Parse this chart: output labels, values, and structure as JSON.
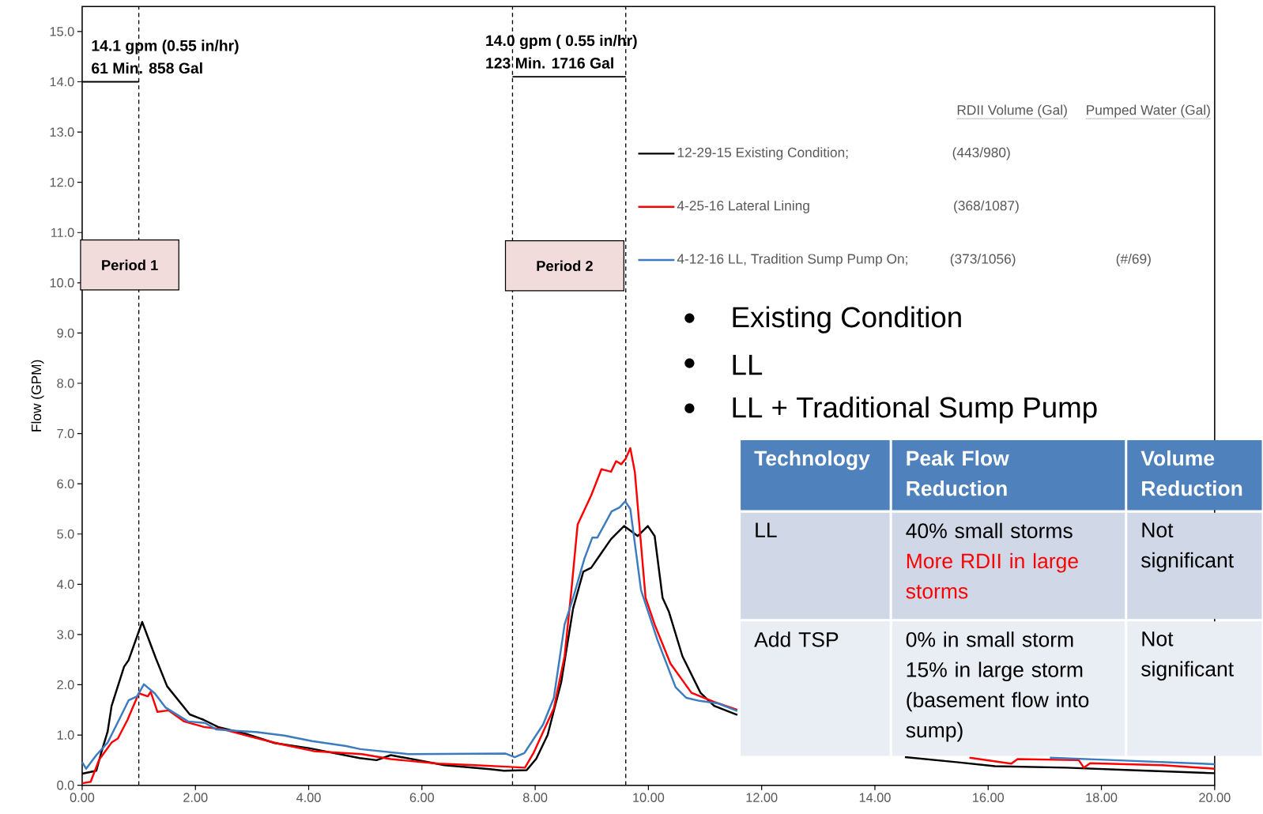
{
  "chart_data": {
    "type": "line",
    "ylabel": "Flow (GPM)",
    "xlim": [
      0,
      20
    ],
    "ylim": [
      0,
      15.5
    ],
    "xticks": [
      {
        "value": 0,
        "label": "0.00"
      },
      {
        "value": 2,
        "label": "2.00"
      },
      {
        "value": 4,
        "label": "4.00"
      },
      {
        "value": 6,
        "label": "6.00"
      },
      {
        "value": 8,
        "label": "8.00"
      },
      {
        "value": 10,
        "label": "10.00"
      },
      {
        "value": 12,
        "label": "12.00"
      },
      {
        "value": 14,
        "label": "14.00"
      },
      {
        "value": 16,
        "label": "16.00"
      },
      {
        "value": 18,
        "label": "18.00"
      },
      {
        "value": 20,
        "label": "20.00"
      }
    ],
    "yticks": [
      {
        "value": 0,
        "label": "0.0"
      },
      {
        "value": 1,
        "label": "1.0"
      },
      {
        "value": 2,
        "label": "2.0"
      },
      {
        "value": 3,
        "label": "3.0"
      },
      {
        "value": 4,
        "label": "4.0"
      },
      {
        "value": 5,
        "label": "5.0"
      },
      {
        "value": 6,
        "label": "6.0"
      },
      {
        "value": 7,
        "label": "7.0"
      },
      {
        "value": 8,
        "label": "8.0"
      },
      {
        "value": 9,
        "label": "9.0"
      },
      {
        "value": 10,
        "label": "10.0"
      },
      {
        "value": 11,
        "label": "11.0"
      },
      {
        "value": 12,
        "label": "12.0"
      },
      {
        "value": 13,
        "label": "13.0"
      },
      {
        "value": 14,
        "label": "14.0"
      },
      {
        "value": 15,
        "label": "15.0"
      }
    ],
    "legend": "top right",
    "series": [
      {
        "name": "12-29-15 Existing Condition;",
        "color": "#000000",
        "x": [
          0,
          0.25,
          0.33,
          0.45,
          0.52,
          0.74,
          0.82,
          1.06,
          1.3,
          1.5,
          1.9,
          2.15,
          2.4,
          2.9,
          3.4,
          4.0,
          4.9,
          5.2,
          5.45,
          6.4,
          7.2,
          7.45,
          7.85,
          8.02,
          8.22,
          8.46,
          8.67,
          8.85,
          8.99,
          9.34,
          9.57,
          9.81,
          9.99,
          10.11,
          10.25,
          10.36,
          10.6,
          10.92,
          11.16,
          11.57,
          13.0,
          14.53,
          15.44,
          16.12,
          17.38,
          18.52,
          20.0
        ],
        "values": [
          0.23,
          0.29,
          0.62,
          1.07,
          1.58,
          2.36,
          2.49,
          3.25,
          2.53,
          1.97,
          1.41,
          1.3,
          1.16,
          1.02,
          0.84,
          0.74,
          0.54,
          0.5,
          0.6,
          0.4,
          0.32,
          0.29,
          0.3,
          0.53,
          1.0,
          2.05,
          3.52,
          4.25,
          4.33,
          4.9,
          5.16,
          4.96,
          5.16,
          4.96,
          3.73,
          3.46,
          2.57,
          1.84,
          1.58,
          1.4,
          null,
          0.56,
          0.46,
          0.38,
          0.35,
          0.3,
          0.24
        ]
      },
      {
        "name": "4-25-16 Lateral Lining",
        "color": "#ff0000",
        "x": [
          0,
          0.15,
          0.3,
          0.52,
          0.63,
          0.8,
          1.0,
          1.16,
          1.21,
          1.33,
          1.53,
          1.8,
          2.15,
          2.5,
          3.0,
          3.5,
          4.09,
          4.94,
          5.45,
          6.29,
          6.94,
          7.49,
          7.82,
          7.97,
          8.33,
          8.52,
          8.64,
          8.75,
          8.99,
          9.17,
          9.34,
          9.43,
          9.52,
          9.6,
          9.68,
          9.76,
          9.95,
          10.11,
          10.39,
          10.76,
          11.16,
          11.57,
          13.0,
          15.67,
          16.41,
          16.52,
          17.6,
          17.69,
          17.8,
          19.08,
          20.0
        ],
        "values": [
          0.04,
          0.07,
          0.51,
          0.85,
          0.93,
          1.3,
          1.83,
          1.77,
          1.86,
          1.46,
          1.49,
          1.27,
          1.16,
          1.11,
          0.96,
          0.82,
          0.68,
          0.62,
          0.52,
          0.43,
          0.4,
          0.37,
          0.35,
          0.64,
          1.53,
          2.57,
          3.88,
          5.19,
          5.77,
          6.29,
          6.24,
          6.45,
          6.39,
          6.5,
          6.71,
          6.24,
          3.73,
          3.2,
          2.42,
          1.84,
          1.66,
          1.5,
          null,
          0.55,
          0.43,
          0.52,
          0.5,
          0.35,
          0.44,
          0.4,
          0.33
        ]
      },
      {
        "name": "4-12-16 LL, Tradition Sump Pump On;",
        "color": "#3b7bbf",
        "x": [
          0,
          0.07,
          0.25,
          0.45,
          0.65,
          0.82,
          0.97,
          1.09,
          1.28,
          1.47,
          1.87,
          2.17,
          2.37,
          2.77,
          3.07,
          3.57,
          4.06,
          4.66,
          4.91,
          5.76,
          7.48,
          7.64,
          7.81,
          8.14,
          8.33,
          8.52,
          8.67,
          8.87,
          9.01,
          9.1,
          9.35,
          9.49,
          9.59,
          9.68,
          9.87,
          10.16,
          10.48,
          10.67,
          10.9,
          11.23,
          11.57,
          14.0,
          17.09,
          18.23,
          20.0
        ],
        "values": [
          0.46,
          0.33,
          0.6,
          0.85,
          1.3,
          1.69,
          1.77,
          2.01,
          1.83,
          1.55,
          1.27,
          1.24,
          1.11,
          1.08,
          1.06,
          0.99,
          0.88,
          0.78,
          0.72,
          0.62,
          0.63,
          0.56,
          0.64,
          1.21,
          1.74,
          3.2,
          3.73,
          4.51,
          4.93,
          4.93,
          5.45,
          5.53,
          5.65,
          5.5,
          3.88,
          2.89,
          1.95,
          1.74,
          1.68,
          1.63,
          1.48,
          null,
          0.55,
          0.5,
          0.42
        ]
      },
      {
        "color": "#000000",
        "x": [
          0,
          1.0
        ],
        "values": [
          14.0,
          14.0
        ]
      },
      {
        "color": "#000000",
        "x": [
          7.6,
          9.6
        ],
        "values": [
          14.1,
          14.1
        ]
      }
    ],
    "ref_lines": [
      {
        "axis": "x",
        "value": 1.0,
        "line_style": "dashed",
        "color": "#000000"
      },
      {
        "axis": "x",
        "value": 7.6,
        "line_style": "dashed",
        "color": "#000000"
      },
      {
        "axis": "x",
        "value": 9.6,
        "line_style": "dashed",
        "color": "#000000"
      }
    ],
    "annotations": [
      {
        "text": "14.1 gpm (0.55 in/hr)",
        "x": 0,
        "y": 14.0
      },
      "61 Min.   858 Gal",
      {
        "text": "14.0 gpm ( 0.55 in/hr)",
        "x": 7.6,
        "y": 14.1
      },
      "123 Min.   1716 Gal",
      "Period 1",
      "Period 2",
      "RDII Volume (Gal)",
      "Pumped Water (Gal)",
      "(443/980)",
      "(368/1087)",
      "(373/1056)",
      "(#/69)",
      "Existing Condition",
      "LL",
      "LL + Traditional Sump Pump",
      "Technology",
      "Peak Flow Reduction",
      "Volume Reduction",
      "LL",
      "40% small storms",
      "More RDII in large storms",
      "Not significant",
      "Add TSP",
      "0% in small storm",
      "15% in large storm (basement flow into sump)",
      "Not significant"
    ]
  }
}
